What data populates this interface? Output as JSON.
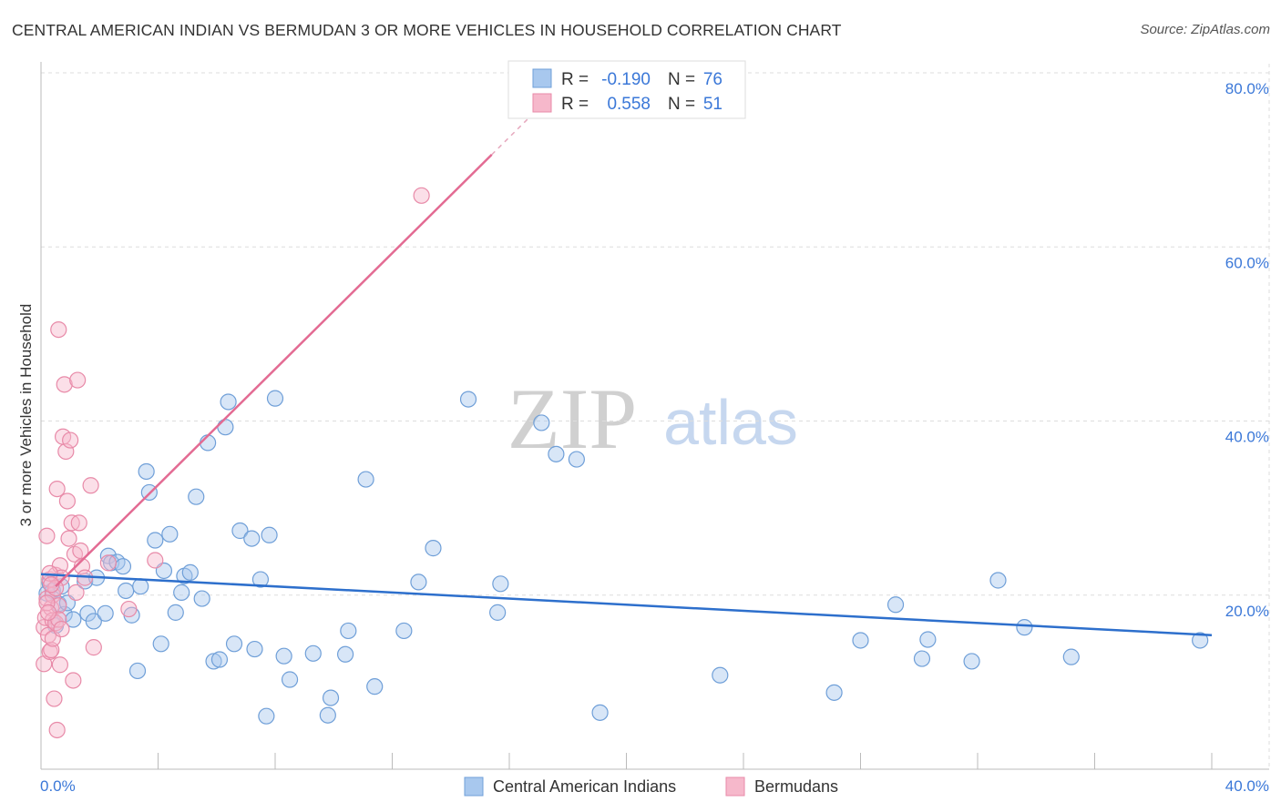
{
  "title": "CENTRAL AMERICAN INDIAN VS BERMUDAN 3 OR MORE VEHICLES IN HOUSEHOLD CORRELATION CHART",
  "source": "Source: ZipAtlas.com",
  "watermark": {
    "zip": "ZIP",
    "atlas": "atlas"
  },
  "colors": {
    "blue_fill": "#a8c8ee",
    "blue_stroke": "#6f9fd8",
    "blue_line": "#2d6fcc",
    "pink_fill": "#f6b8cb",
    "pink_stroke": "#e88aa8",
    "pink_line": "#e36b93",
    "value_text": "#3b78d8",
    "grid": "#dddddd"
  },
  "stats": [
    {
      "r_label": "R =",
      "r_value": "-0.190",
      "n_label": "N =",
      "n_value": "76"
    },
    {
      "r_label": "R =",
      "r_value": "0.558",
      "n_label": "N =",
      "n_value": "51"
    }
  ],
  "chart_data": {
    "type": "scatter",
    "title": "CENTRAL AMERICAN INDIAN VS BERMUDAN 3 OR MORE VEHICLES IN HOUSEHOLD CORRELATION CHART",
    "xlabel": "",
    "ylabel": "3 or more Vehicles in Household",
    "xlim": [
      0,
      40
    ],
    "ylim": [
      0,
      80
    ],
    "x_tick_labels": [
      "0.0%",
      "40.0%"
    ],
    "y_ticks": [
      20,
      40,
      60,
      80
    ],
    "y_tick_labels": [
      "20.0%",
      "40.0%",
      "60.0%",
      "80.0%"
    ],
    "legend": [
      "Central American Indians",
      "Bermudans"
    ],
    "series": [
      {
        "name": "Central American Indians",
        "trend": {
          "x": [
            0,
            40
          ],
          "y": [
            22.4,
            15.4
          ]
        },
        "points": [
          [
            0.2,
            20.2
          ],
          [
            0.3,
            21.4
          ],
          [
            0.4,
            20.5
          ],
          [
            0.5,
            16.5
          ],
          [
            0.6,
            19.0
          ],
          [
            0.7,
            21.0
          ],
          [
            0.8,
            17.8
          ],
          [
            0.9,
            19.1
          ],
          [
            1.1,
            17.2
          ],
          [
            1.5,
            21.6
          ],
          [
            1.6,
            17.9
          ],
          [
            1.8,
            17.0
          ],
          [
            1.9,
            22.0
          ],
          [
            2.2,
            17.9
          ],
          [
            2.3,
            24.5
          ],
          [
            2.4,
            23.7
          ],
          [
            2.6,
            23.8
          ],
          [
            2.8,
            23.3
          ],
          [
            2.9,
            20.5
          ],
          [
            3.1,
            17.7
          ],
          [
            3.3,
            11.3
          ],
          [
            3.4,
            21.0
          ],
          [
            3.6,
            34.2
          ],
          [
            3.7,
            31.8
          ],
          [
            3.9,
            26.3
          ],
          [
            4.1,
            14.4
          ],
          [
            4.2,
            22.8
          ],
          [
            4.4,
            27.0
          ],
          [
            4.6,
            18.0
          ],
          [
            4.8,
            20.3
          ],
          [
            4.9,
            22.2
          ],
          [
            5.1,
            22.6
          ],
          [
            5.3,
            31.3
          ],
          [
            5.5,
            19.6
          ],
          [
            5.7,
            37.5
          ],
          [
            5.9,
            12.4
          ],
          [
            6.1,
            12.6
          ],
          [
            6.3,
            39.3
          ],
          [
            6.4,
            42.2
          ],
          [
            6.6,
            14.4
          ],
          [
            6.8,
            27.4
          ],
          [
            7.2,
            26.5
          ],
          [
            7.3,
            13.8
          ],
          [
            7.5,
            21.8
          ],
          [
            7.7,
            6.1
          ],
          [
            7.8,
            26.9
          ],
          [
            8.0,
            42.6
          ],
          [
            8.3,
            13.0
          ],
          [
            8.5,
            10.3
          ],
          [
            9.3,
            13.3
          ],
          [
            9.8,
            6.2
          ],
          [
            9.9,
            8.2
          ],
          [
            10.4,
            13.2
          ],
          [
            10.5,
            15.9
          ],
          [
            11.1,
            33.3
          ],
          [
            11.4,
            9.5
          ],
          [
            12.4,
            15.9
          ],
          [
            12.9,
            21.5
          ],
          [
            13.4,
            25.4
          ],
          [
            14.6,
            42.5
          ],
          [
            15.6,
            18.0
          ],
          [
            15.7,
            21.3
          ],
          [
            17.1,
            39.8
          ],
          [
            17.6,
            36.2
          ],
          [
            18.3,
            35.6
          ],
          [
            19.1,
            6.5
          ],
          [
            23.2,
            10.8
          ],
          [
            27.1,
            8.8
          ],
          [
            28.0,
            14.8
          ],
          [
            29.2,
            18.9
          ],
          [
            30.1,
            12.7
          ],
          [
            30.3,
            14.9
          ],
          [
            31.8,
            12.4
          ],
          [
            32.7,
            21.7
          ],
          [
            33.6,
            16.3
          ],
          [
            35.2,
            12.9
          ],
          [
            39.6,
            14.8
          ]
        ]
      },
      {
        "name": "Bermudans",
        "trend": {
          "x": [
            0.5,
            15.4
          ],
          "y": [
            21.0,
            70.6
          ]
        },
        "points": [
          [
            0.1,
            12.1
          ],
          [
            0.1,
            16.3
          ],
          [
            0.15,
            17.4
          ],
          [
            0.2,
            19.6
          ],
          [
            0.2,
            26.8
          ],
          [
            0.25,
            15.4
          ],
          [
            0.3,
            13.5
          ],
          [
            0.3,
            21.8
          ],
          [
            0.35,
            13.7
          ],
          [
            0.35,
            18.5
          ],
          [
            0.4,
            17.1
          ],
          [
            0.4,
            20.0
          ],
          [
            0.45,
            8.1
          ],
          [
            0.5,
            16.8
          ],
          [
            0.5,
            22.3
          ],
          [
            0.55,
            4.5
          ],
          [
            0.55,
            32.2
          ],
          [
            0.6,
            50.5
          ],
          [
            0.6,
            18.8
          ],
          [
            0.65,
            23.4
          ],
          [
            0.65,
            12.0
          ],
          [
            0.7,
            22.0
          ],
          [
            0.75,
            38.2
          ],
          [
            0.8,
            44.2
          ],
          [
            0.85,
            36.5
          ],
          [
            0.9,
            30.8
          ],
          [
            0.95,
            26.5
          ],
          [
            1.0,
            37.8
          ],
          [
            1.05,
            28.3
          ],
          [
            1.1,
            10.2
          ],
          [
            1.15,
            24.7
          ],
          [
            1.2,
            20.3
          ],
          [
            1.25,
            44.7
          ],
          [
            1.3,
            28.3
          ],
          [
            1.35,
            25.1
          ],
          [
            1.4,
            23.3
          ],
          [
            1.5,
            22.0
          ],
          [
            1.7,
            32.6
          ],
          [
            1.8,
            14.0
          ],
          [
            2.3,
            23.7
          ],
          [
            3.0,
            18.4
          ],
          [
            3.9,
            24.0
          ],
          [
            13.0,
            65.9
          ],
          [
            0.3,
            22.5
          ],
          [
            0.5,
            20.8
          ],
          [
            0.4,
            15.0
          ],
          [
            0.2,
            19.1
          ],
          [
            0.6,
            17.2
          ],
          [
            0.35,
            21.2
          ],
          [
            0.7,
            16.1
          ],
          [
            0.25,
            18.0
          ]
        ]
      }
    ]
  }
}
